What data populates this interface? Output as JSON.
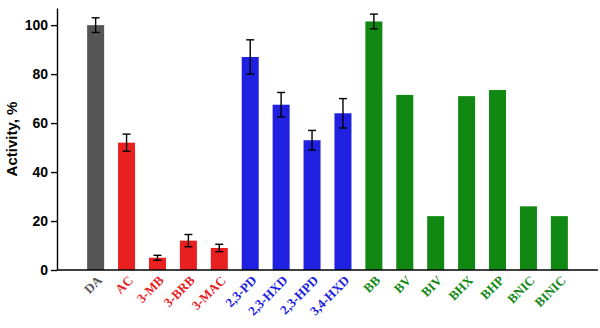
{
  "chart_data": {
    "type": "bar",
    "y_label": "Activity, %",
    "categories": [
      "DA",
      "AC",
      "3-MB",
      "3-BRB",
      "3-MAC",
      "2,3-PD",
      "2,3-HXD",
      "2,3-HPD",
      "3,4-HXD",
      "BB",
      "BV",
      "BIV",
      "BHX",
      "BHP",
      "BNIC",
      "BINIC"
    ],
    "values": [
      100,
      52,
      5,
      12,
      9,
      87,
      67.5,
      53,
      64,
      101.5,
      71.5,
      22,
      71,
      73.5,
      26,
      22
    ],
    "errors": [
      3,
      3.5,
      1,
      2.5,
      1.5,
      7,
      5,
      4,
      6,
      3,
      null,
      null,
      null,
      null,
      null,
      null
    ],
    "colors": [
      "#555555",
      "#e8201f",
      "#e8201f",
      "#e8201f",
      "#e8201f",
      "#2020e0",
      "#2020e0",
      "#2020e0",
      "#2020e0",
      "#118811",
      "#118811",
      "#118811",
      "#118811",
      "#118811",
      "#118811",
      "#118811"
    ],
    "ylim": [
      0,
      107
    ],
    "yticks": [
      0,
      20,
      40,
      60,
      80,
      100
    ]
  }
}
